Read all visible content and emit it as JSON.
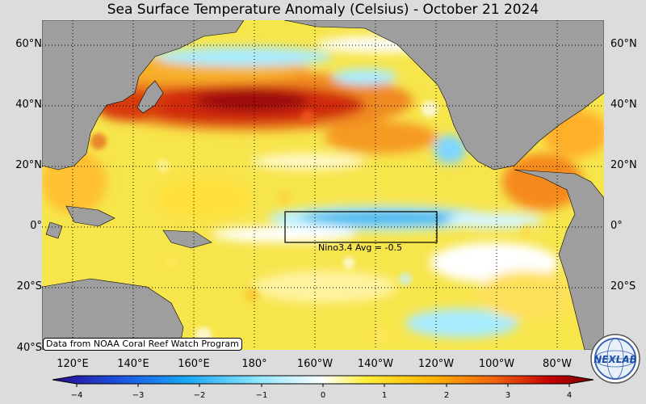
{
  "title": "Sea Surface Temperature Anomaly (Celsius) - October 21 2024",
  "lat_labels": [
    "60°N",
    "40°N",
    "20°N",
    "0°",
    "20°S",
    "40°S"
  ],
  "lon_labels": [
    "120°E",
    "140°E",
    "160°E",
    "180°",
    "160°W",
    "140°W",
    "120°W",
    "100°W",
    "80°W"
  ],
  "credit": "Data from NOAA Coral Reef Watch Program",
  "nino_label": "Nino3.4 Avg = -0.5",
  "colorbar": {
    "ticks": [
      "−4",
      "−3",
      "−2",
      "−1",
      "0",
      "1",
      "2",
      "3",
      "4"
    ],
    "min": -4,
    "max": 4,
    "colors": [
      "#2a0a8c",
      "#1c4fe0",
      "#19a8f5",
      "#8fe6ff",
      "#ffffff",
      "#ffee3a",
      "#ffb400",
      "#f06010",
      "#c40000",
      "#7a0000"
    ]
  },
  "logo_text": "NEXLAB",
  "colors": {
    "land": "#9e9e9e",
    "ocean_base": "#f5e44a",
    "warm": "#e4541a",
    "hot": "#b40a0a",
    "cool": "#9be8ff",
    "cold": "#2ea6e8"
  }
}
